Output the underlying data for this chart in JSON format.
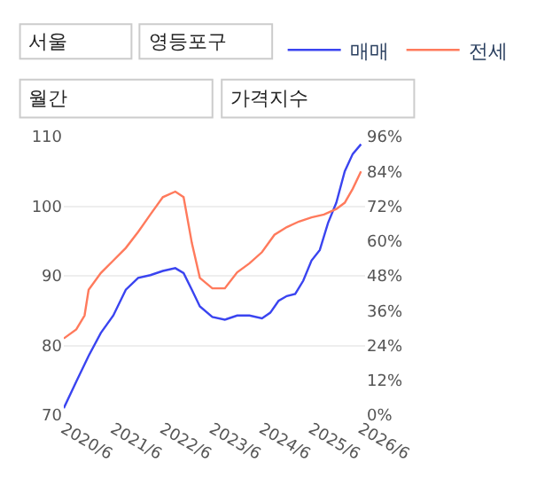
{
  "chart_data": {
    "type": "line",
    "annotations": [
      "서울",
      "영등포구",
      "월간",
      "가격지수"
    ],
    "series": [
      {
        "name": "매매",
        "color": "#3a44f0",
        "x": [
          "2020-06",
          "2020-09",
          "2020-12",
          "2021-03",
          "2021-06",
          "2021-09",
          "2021-12",
          "2022-03",
          "2022-06",
          "2022-09",
          "2022-11",
          "2023-01",
          "2023-03",
          "2023-06",
          "2023-09",
          "2023-12",
          "2024-03",
          "2024-06",
          "2024-08",
          "2024-10",
          "2024-12",
          "2025-02",
          "2025-04",
          "2025-06",
          "2025-08",
          "2025-10",
          "2025-12",
          "2026-02",
          "2026-04",
          "2026-06"
        ],
        "values": [
          71,
          74.8,
          78.5,
          81.8,
          84.3,
          88,
          89.7,
          90.1,
          90.7,
          91.1,
          90.4,
          88,
          85.6,
          84.1,
          83.7,
          84.3,
          84.3,
          83.9,
          84.7,
          86.4,
          87.1,
          87.4,
          89.3,
          92.2,
          93.7,
          97.6,
          100.5,
          105,
          107.5,
          108.9
        ]
      },
      {
        "name": "전세",
        "color": "#ff7a5c",
        "x": [
          "2020-06",
          "2020-09",
          "2020-11",
          "2020-12",
          "2021-03",
          "2021-06",
          "2021-09",
          "2021-12",
          "2022-03",
          "2022-06",
          "2022-09",
          "2022-11",
          "2023-01",
          "2023-03",
          "2023-06",
          "2023-09",
          "2023-12",
          "2024-03",
          "2024-06",
          "2024-09",
          "2024-12",
          "2025-03",
          "2025-06",
          "2025-09",
          "2025-12",
          "2026-02",
          "2026-04",
          "2026-06"
        ],
        "values": [
          81,
          82.3,
          84.3,
          88,
          90.4,
          92.2,
          94,
          96.3,
          98.8,
          101.3,
          102.1,
          101.3,
          94.7,
          89.7,
          88.2,
          88.2,
          90.5,
          91.8,
          93.4,
          95.9,
          97,
          97.8,
          98.4,
          98.8,
          99.6,
          100.5,
          102.5,
          105
        ]
      }
    ],
    "xlim": [
      "2020-06",
      "2026-07"
    ],
    "xticks": [
      {
        "value": "2020-06",
        "label": "2020/6"
      },
      {
        "value": "2021-06",
        "label": "2021/6"
      },
      {
        "value": "2022-06",
        "label": "2022/6"
      },
      {
        "value": "2023-06",
        "label": "2023/6"
      },
      {
        "value": "2024-06",
        "label": "2024/6"
      },
      {
        "value": "2025-06",
        "label": "2025/6"
      },
      {
        "value": "2026-06",
        "label": "2026/6"
      }
    ],
    "ylim": [
      70,
      110
    ],
    "yticks": [
      70,
      80,
      90,
      100,
      110
    ],
    "y2lim": [
      0,
      96
    ],
    "y2ticks": [
      {
        "value": 0,
        "label": "0%"
      },
      {
        "value": 12,
        "label": "12%"
      },
      {
        "value": 24,
        "label": "24%"
      },
      {
        "value": 36,
        "label": "36%"
      },
      {
        "value": 48,
        "label": "48%"
      },
      {
        "value": 60,
        "label": "60%"
      },
      {
        "value": 72,
        "label": "72%"
      },
      {
        "value": 84,
        "label": "84%"
      },
      {
        "value": 96,
        "label": "96%"
      }
    ],
    "grid": "y",
    "legend": "top right",
    "marker": "none",
    "line_style": "solid"
  }
}
